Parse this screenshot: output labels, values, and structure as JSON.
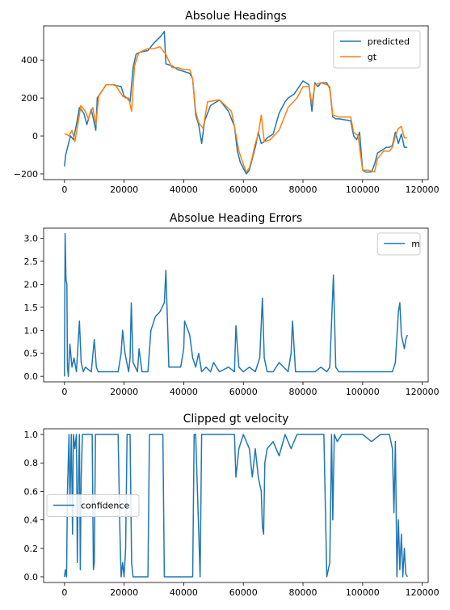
{
  "chart_data": [
    {
      "type": "line",
      "title": "Absolue Headings",
      "xlabel": "",
      "ylabel": "",
      "xlim": [
        -7000,
        122000
      ],
      "ylim": [
        -230,
        580
      ],
      "xticks": [
        0,
        20000,
        40000,
        60000,
        80000,
        100000,
        120000
      ],
      "yticks": [
        -200,
        0,
        200,
        400
      ],
      "ytick_labels": [
        "−200",
        "0",
        "200",
        "400"
      ],
      "legend_position": "top-right",
      "series": [
        {
          "name": "predicted",
          "color": "#1f77b4",
          "x": [
            0,
            400,
            1500,
            2000,
            3000,
            4000,
            5000,
            6500,
            7500,
            9000,
            10500,
            11000,
            14000,
            16000,
            19000,
            20000,
            21000,
            22000,
            23000,
            24000,
            25000,
            28000,
            30000,
            32000,
            33500,
            34000,
            36000,
            38000,
            40000,
            42000,
            43000,
            44000,
            45000,
            46000,
            47000,
            49000,
            52000,
            53000,
            55000,
            57000,
            58000,
            59000,
            60000,
            61000,
            62000,
            63000,
            64000,
            65000,
            66000,
            67000,
            68000,
            70000,
            72000,
            74000,
            75000,
            77000,
            80000,
            82000,
            83000,
            84000,
            85000,
            86000,
            88000,
            89000,
            90000,
            91000,
            92000,
            96000,
            97000,
            98000,
            99000,
            100000,
            101000,
            103000,
            104000,
            105000,
            106000,
            107000,
            108000,
            109000,
            110000,
            111000,
            112000,
            113000,
            114000,
            115000
          ],
          "y": [
            -160,
            -100,
            -30,
            0,
            -20,
            60,
            150,
            120,
            60,
            140,
            30,
            200,
            270,
            270,
            260,
            210,
            200,
            180,
            360,
            430,
            440,
            450,
            490,
            520,
            550,
            380,
            370,
            350,
            340,
            330,
            300,
            110,
            60,
            -40,
            80,
            160,
            190,
            170,
            130,
            50,
            -80,
            -140,
            -170,
            -200,
            -180,
            -120,
            -60,
            20,
            -40,
            -30,
            -10,
            10,
            120,
            180,
            200,
            220,
            290,
            270,
            130,
            280,
            260,
            280,
            280,
            250,
            100,
            90,
            90,
            80,
            0,
            -20,
            20,
            -180,
            -190,
            -190,
            -150,
            -90,
            -80,
            -70,
            -60,
            -60,
            -50,
            20,
            -40,
            10,
            -60,
            -60
          ]
        },
        {
          "name": "gt",
          "color": "#ff7f0e",
          "x": [
            0,
            500,
            1500,
            2500,
            3500,
            4500,
            5500,
            7000,
            8000,
            9500,
            10500,
            11500,
            14000,
            17000,
            19500,
            20500,
            21500,
            22500,
            23500,
            25000,
            28000,
            30000,
            32000,
            34000,
            36000,
            38000,
            40000,
            42000,
            43000,
            44000,
            45000,
            46500,
            48000,
            52000,
            54000,
            56000,
            57000,
            58500,
            60000,
            61000,
            62000,
            63000,
            64000,
            65000,
            66000,
            67000,
            69000,
            72000,
            75000,
            78000,
            80000,
            82000,
            83000,
            84000,
            86000,
            88000,
            89000,
            90000,
            92000,
            96000,
            97000,
            98500,
            100000,
            102000,
            104000,
            105000,
            107000,
            109000,
            110000,
            111000,
            112000,
            113000,
            114000,
            115000
          ],
          "y": [
            10,
            10,
            0,
            30,
            -30,
            60,
            160,
            130,
            90,
            150,
            60,
            210,
            270,
            270,
            210,
            200,
            200,
            130,
            370,
            440,
            460,
            460,
            470,
            430,
            360,
            360,
            350,
            350,
            300,
            130,
            70,
            40,
            180,
            190,
            160,
            130,
            50,
            -80,
            -150,
            -190,
            -170,
            -110,
            -40,
            10,
            110,
            -30,
            -20,
            30,
            150,
            200,
            260,
            260,
            170,
            270,
            280,
            270,
            260,
            110,
            100,
            100,
            20,
            0,
            -180,
            -180,
            -190,
            -120,
            -80,
            -80,
            -60,
            0,
            40,
            50,
            -10,
            -10
          ]
        }
      ]
    },
    {
      "type": "line",
      "title": "Absolue Heading Errors",
      "xlabel": "",
      "ylabel": "",
      "xlim": [
        -7000,
        122000
      ],
      "ylim": [
        -0.12,
        3.22
      ],
      "xticks": [
        0,
        20000,
        40000,
        60000,
        80000,
        100000,
        120000
      ],
      "yticks": [
        0.0,
        0.5,
        1.0,
        1.5,
        2.0,
        2.5,
        3.0
      ],
      "ytick_labels": [
        "0.0",
        "0.5",
        "1.0",
        "1.5",
        "2.0",
        "2.5",
        "3.0"
      ],
      "legend_position": "top-right",
      "series": [
        {
          "name": "m",
          "color": "#1f77b4",
          "x": [
            0,
            200,
            500,
            800,
            1000,
            1300,
            1800,
            2500,
            3200,
            4000,
            5000,
            5600,
            6300,
            7000,
            9000,
            10000,
            10700,
            11300,
            13000,
            15000,
            18000,
            19000,
            19500,
            20300,
            21500,
            22000,
            22400,
            23000,
            24500,
            25000,
            26000,
            28000,
            29000,
            30500,
            32000,
            33500,
            34000,
            34500,
            35000,
            37000,
            39000,
            40000,
            40300,
            42000,
            43000,
            44000,
            45000,
            46000,
            47500,
            49000,
            50000,
            52000,
            55000,
            57000,
            57500,
            58500,
            60000,
            62000,
            64000,
            65500,
            66400,
            67000,
            68000,
            70000,
            72000,
            75000,
            76000,
            76500,
            77500,
            80000,
            84000,
            86000,
            88000,
            89000,
            90200,
            91000,
            92000,
            96000,
            100000,
            104000,
            108000,
            110000,
            111000,
            112000,
            112500,
            113000,
            114000,
            114500,
            115000
          ],
          "y": [
            0.0,
            3.1,
            2.1,
            2.0,
            0.2,
            0.0,
            0.7,
            0.2,
            0.4,
            0.1,
            1.2,
            0.3,
            0.1,
            0.2,
            0.1,
            0.8,
            0.2,
            0.1,
            0.1,
            0.1,
            0.1,
            0.5,
            1.0,
            0.5,
            0.1,
            0.4,
            1.6,
            0.3,
            0.1,
            0.6,
            0.1,
            0.1,
            1.0,
            1.3,
            1.4,
            1.6,
            2.3,
            1.3,
            0.2,
            0.2,
            0.2,
            0.6,
            1.2,
            0.9,
            0.4,
            0.2,
            0.5,
            0.1,
            0.2,
            0.1,
            0.3,
            0.1,
            0.2,
            0.1,
            1.1,
            0.2,
            0.1,
            0.2,
            0.1,
            0.4,
            1.7,
            0.4,
            0.1,
            0.1,
            0.3,
            0.1,
            0.5,
            1.2,
            0.1,
            0.1,
            0.1,
            0.2,
            0.1,
            0.2,
            2.2,
            0.2,
            0.1,
            0.1,
            0.1,
            0.1,
            0.1,
            0.1,
            0.3,
            1.4,
            1.6,
            0.9,
            0.6,
            0.8,
            0.9
          ]
        }
      ]
    },
    {
      "type": "line",
      "title": "Clipped gt velocity",
      "xlabel": "",
      "ylabel": "",
      "xlim": [
        -7000,
        122000
      ],
      "ylim": [
        -0.04,
        1.04
      ],
      "xticks": [
        0,
        20000,
        40000,
        60000,
        80000,
        100000,
        120000
      ],
      "yticks": [
        0.0,
        0.2,
        0.4,
        0.6,
        0.8,
        1.0
      ],
      "ytick_labels": [
        "0.0",
        "0.2",
        "0.4",
        "0.6",
        "0.8",
        "1.0"
      ],
      "legend_position": "center-left",
      "series": [
        {
          "name": "confidence",
          "color": "#1f77b4",
          "x": [
            0,
            300,
            700,
            1000,
            1500,
            1800,
            2300,
            2700,
            3000,
            3500,
            4000,
            4300,
            4600,
            5000,
            5300,
            5600,
            6000,
            8000,
            9300,
            9700,
            10000,
            10400,
            11000,
            18000,
            18600,
            19000,
            19500,
            20000,
            20500,
            21000,
            22000,
            22500,
            23000,
            24000,
            28000,
            28500,
            29500,
            33000,
            33500,
            34000,
            43000,
            43500,
            44000,
            45500,
            46000,
            57000,
            57500,
            58500,
            60000,
            62000,
            63000,
            64000,
            65000,
            66000,
            66400,
            66800,
            67200,
            68000,
            70000,
            72000,
            74000,
            76000,
            78000,
            80000,
            85000,
            87000,
            88000,
            89000,
            89600,
            90000,
            90500,
            91500,
            93000,
            96000,
            100000,
            103000,
            106000,
            108000,
            109000,
            110000,
            110500,
            111000,
            111500,
            112000,
            112500,
            113000,
            113500,
            114000,
            114500,
            115000
          ],
          "y": [
            0.0,
            0.05,
            0.0,
            0.6,
            1.0,
            0.5,
            1.0,
            0.3,
            1.0,
            0.9,
            1.0,
            0.1,
            0.6,
            1.0,
            0.05,
            0.7,
            1.0,
            1.0,
            1.0,
            0.05,
            0.1,
            1.0,
            1.0,
            1.0,
            0.3,
            0.0,
            0.1,
            0.0,
            0.2,
            1.0,
            1.0,
            0.1,
            0.0,
            0.0,
            0.0,
            1.0,
            1.0,
            1.0,
            0.0,
            0.0,
            0.0,
            1.0,
            1.0,
            0.0,
            1.0,
            1.0,
            0.7,
            0.9,
            1.0,
            0.9,
            0.7,
            0.9,
            0.7,
            0.6,
            0.35,
            0.3,
            0.8,
            0.9,
            0.95,
            0.85,
            1.0,
            0.9,
            1.0,
            1.0,
            1.0,
            1.0,
            0.0,
            0.1,
            1.0,
            0.4,
            1.0,
            0.95,
            1.0,
            1.0,
            1.0,
            0.95,
            1.0,
            1.0,
            1.0,
            0.9,
            0.45,
            0.95,
            0.0,
            0.4,
            0.05,
            0.3,
            0.0,
            0.2,
            0.02,
            0.0
          ]
        }
      ]
    }
  ]
}
